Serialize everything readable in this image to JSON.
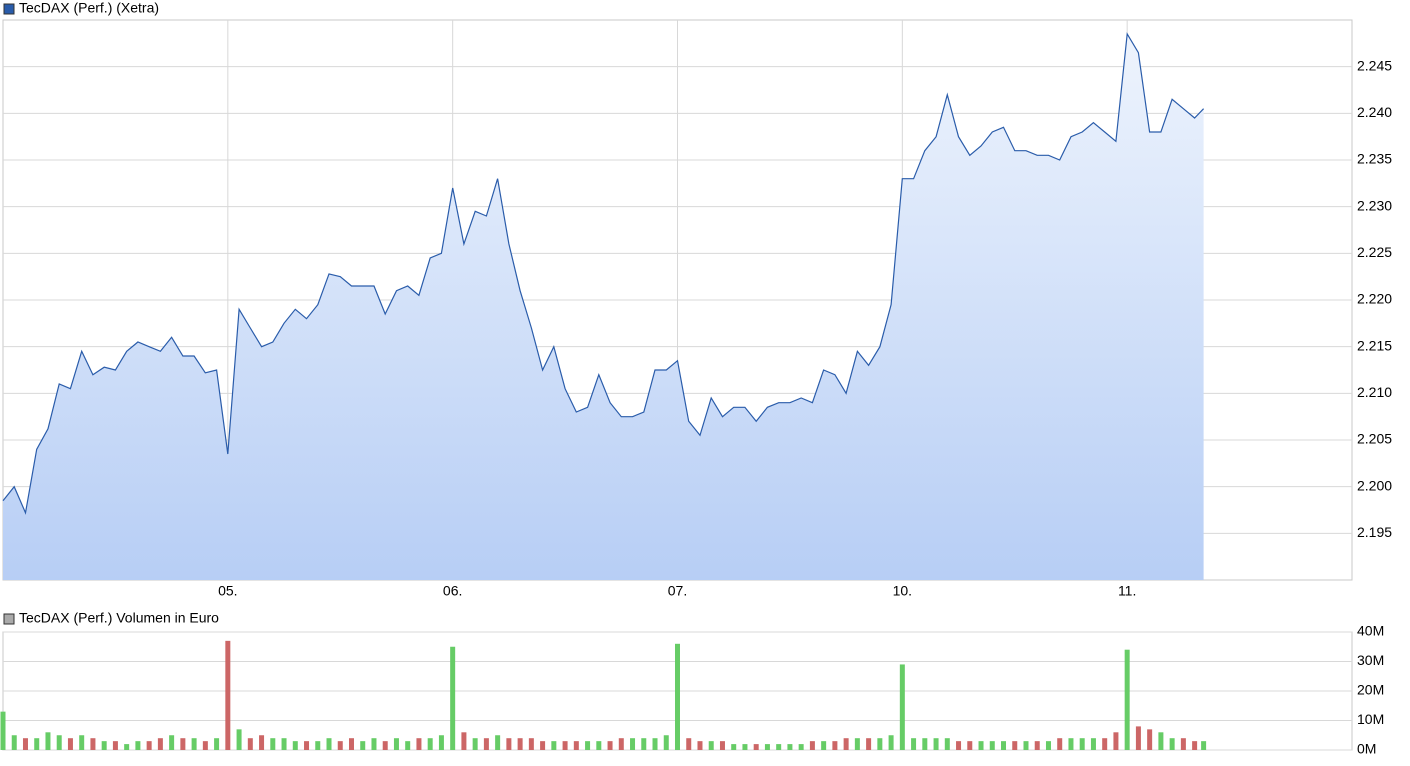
{
  "chart_data": [
    {
      "type": "area",
      "legend": "TecDAX (Perf.) (Xetra)",
      "color": "#2a5caa",
      "fill_top": "#eef4fd",
      "fill_bottom": "#b7cef5",
      "xlim": [
        0,
        6
      ],
      "ylim": [
        2190,
        2250
      ],
      "grid": true,
      "xticks": [
        {
          "value": 1,
          "label": "05."
        },
        {
          "value": 2,
          "label": "06."
        },
        {
          "value": 3,
          "label": "07."
        },
        {
          "value": 4,
          "label": "10."
        },
        {
          "value": 5,
          "label": "11."
        }
      ],
      "yticks": [
        {
          "value": 2195,
          "label": "2.195"
        },
        {
          "value": 2200,
          "label": "2.200"
        },
        {
          "value": 2205,
          "label": "2.205"
        },
        {
          "value": 2210,
          "label": "2.210"
        },
        {
          "value": 2215,
          "label": "2.215"
        },
        {
          "value": 2220,
          "label": "2.220"
        },
        {
          "value": 2225,
          "label": "2.225"
        },
        {
          "value": 2230,
          "label": "2.230"
        },
        {
          "value": 2235,
          "label": "2.235"
        },
        {
          "value": 2240,
          "label": "2.240"
        },
        {
          "value": 2245,
          "label": "2.245"
        }
      ],
      "x": [
        0,
        0.05,
        0.1,
        0.15,
        0.2,
        0.25,
        0.3,
        0.35,
        0.4,
        0.45,
        0.5,
        0.55,
        0.6,
        0.65,
        0.7,
        0.75,
        0.8,
        0.85,
        0.9,
        0.95,
        1,
        1.05,
        1.1,
        1.15,
        1.2,
        1.25,
        1.3,
        1.35,
        1.4,
        1.45,
        1.5,
        1.55,
        1.6,
        1.65,
        1.7,
        1.75,
        1.8,
        1.85,
        1.9,
        1.95,
        2,
        2.05,
        2.1,
        2.15,
        2.2,
        2.25,
        2.3,
        2.35,
        2.4,
        2.45,
        2.5,
        2.55,
        2.6,
        2.65,
        2.7,
        2.75,
        2.8,
        2.85,
        2.9,
        2.95,
        3,
        3.05,
        3.1,
        3.15,
        3.2,
        3.25,
        3.3,
        3.35,
        3.4,
        3.45,
        3.5,
        3.55,
        3.6,
        3.65,
        3.7,
        3.75,
        3.8,
        3.85,
        3.9,
        3.95,
        4,
        4.05,
        4.1,
        4.15,
        4.2,
        4.25,
        4.3,
        4.35,
        4.4,
        4.45,
        4.5,
        4.55,
        4.6,
        4.65,
        4.7,
        4.75,
        4.8,
        4.85,
        4.9,
        4.95,
        5,
        5.05,
        5.1,
        5.15,
        5.2,
        5.25,
        5.3,
        5.34
      ],
      "values": [
        2198.5,
        2200,
        2197.2,
        2204,
        2206.2,
        2211,
        2210.5,
        2214.5,
        2212,
        2212.8,
        2212.5,
        2214.5,
        2215.5,
        2215,
        2214.5,
        2216,
        2214,
        2214,
        2212.2,
        2212.5,
        2203.5,
        2219,
        2217,
        2215,
        2215.5,
        2217.5,
        2219,
        2218,
        2219.5,
        2222.8,
        2222.5,
        2221.5,
        2221.5,
        2221.5,
        2218.5,
        2221,
        2221.5,
        2220.5,
        2224.5,
        2225,
        2232,
        2226,
        2229.5,
        2229,
        2233,
        2226,
        2221,
        2217,
        2212.5,
        2215,
        2210.5,
        2208,
        2208.5,
        2212,
        2209,
        2207.5,
        2207.5,
        2208,
        2212.5,
        2212.5,
        2213.5,
        2207,
        2205.5,
        2209.5,
        2207.5,
        2208.5,
        2208.5,
        2207,
        2208.5,
        2209,
        2209,
        2209.5,
        2209,
        2212.5,
        2212,
        2210,
        2214.5,
        2213,
        2215,
        2219.5,
        2233,
        2233,
        2236,
        2237.5,
        2242,
        2237.5,
        2235.5,
        2236.5,
        2238,
        2238.5,
        2236,
        2236,
        2235.5,
        2235.5,
        2235,
        2237.5,
        2238,
        2239,
        2238,
        2237,
        2248.5,
        2246.5,
        2238,
        2238,
        2241.5,
        2240.5,
        2239.5,
        2240.5
      ]
    },
    {
      "type": "bar",
      "legend": "TecDAX (Perf.) Volumen in Euro",
      "legend_color": "#aaaaaa",
      "up_color": "#66cc66",
      "down_color": "#cc6666",
      "ylim": [
        0,
        40
      ],
      "grid": true,
      "yticks": [
        {
          "value": 0,
          "label": "0M"
        },
        {
          "value": 10,
          "label": "10M"
        },
        {
          "value": 20,
          "label": "20M"
        },
        {
          "value": 30,
          "label": "30M"
        },
        {
          "value": 40,
          "label": "40M"
        }
      ],
      "values": [
        13,
        5,
        4,
        4,
        6,
        5,
        4,
        5,
        4,
        3,
        3,
        2,
        3,
        3,
        4,
        5,
        4,
        4,
        3,
        4,
        37,
        7,
        4,
        5,
        4,
        4,
        3,
        3,
        3,
        4,
        3,
        4,
        3,
        4,
        3,
        4,
        3,
        4,
        4,
        5,
        35,
        6,
        4,
        4,
        5,
        4,
        4,
        4,
        3,
        3,
        3,
        3,
        3,
        3,
        3,
        4,
        4,
        4,
        4,
        5,
        36,
        4,
        3,
        3,
        3,
        2,
        2,
        2,
        2,
        2,
        2,
        2,
        3,
        3,
        3,
        4,
        4,
        4,
        4,
        5,
        29,
        4,
        4,
        4,
        4,
        3,
        3,
        3,
        3,
        3,
        3,
        3,
        3,
        3,
        4,
        4,
        4,
        4,
        4,
        6,
        34,
        8,
        7,
        6,
        4,
        4,
        3,
        3
      ]
    }
  ]
}
